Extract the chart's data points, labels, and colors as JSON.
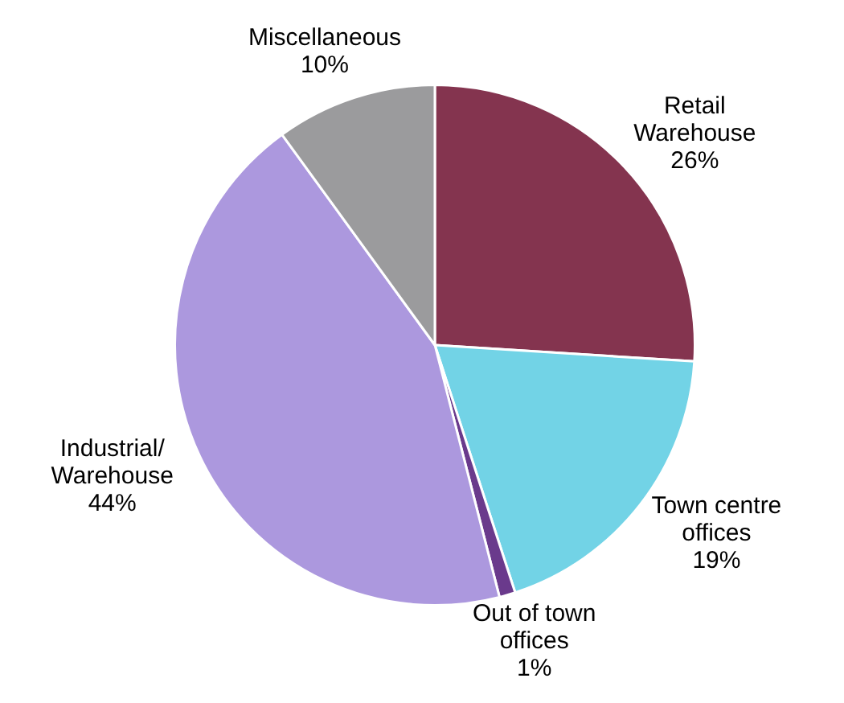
{
  "chart_data": {
    "type": "pie",
    "categories": [
      "Retail\nWarehouse",
      "Town centre\noffices",
      "Out of town\noffices",
      "Industrial/\nWarehouse",
      "Miscellaneous"
    ],
    "values": [
      26,
      19,
      1,
      44,
      10
    ],
    "value_labels": [
      "26%",
      "19%",
      "1%",
      "44%",
      "10%"
    ],
    "colors": [
      "#84344f",
      "#72d3e6",
      "#6a3a8c",
      "#ac98de",
      "#9b9b9d"
    ],
    "legend": false
  }
}
